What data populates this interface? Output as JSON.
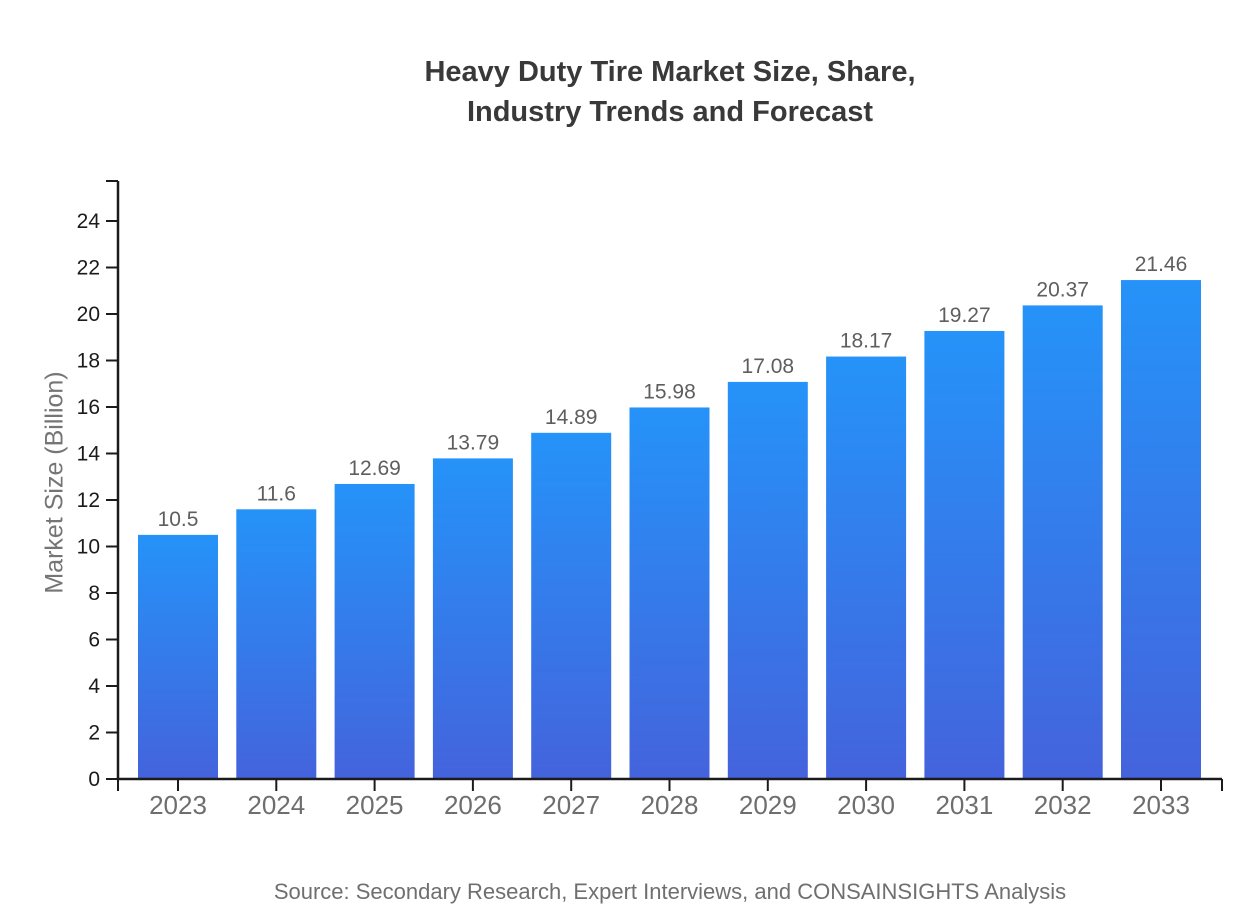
{
  "header": {
    "title_lines": [
      "Heavy Duty Tire Market Size, Share,",
      "Industry Trends and Forecast"
    ]
  },
  "footer": {
    "source": "Source: Secondary Research, Expert Interviews, and CONSAINSIGHTS Analysis"
  },
  "chart_data": {
    "type": "bar",
    "title": "Heavy Duty Tire Market Size, Share, Industry Trends and Forecast",
    "categories": [
      "2023",
      "2024",
      "2025",
      "2026",
      "2027",
      "2028",
      "2029",
      "2030",
      "2031",
      "2032",
      "2033"
    ],
    "values": [
      10.5,
      11.6,
      12.69,
      13.79,
      14.89,
      15.98,
      17.08,
      18.17,
      19.27,
      20.37,
      21.46
    ],
    "xlabel": "",
    "ylabel": "Market Size (Billion)",
    "y_ticks": [
      0,
      2,
      4,
      6,
      8,
      10,
      12,
      14,
      16,
      18,
      20,
      22,
      24
    ],
    "ylim": [
      0,
      25.7
    ],
    "grid": false,
    "legend_position": "none",
    "colors": {
      "bar_top": "#2593f9",
      "bar_bottom": "#4463dc",
      "axis": "#1b1b1b",
      "y_tick_label": "#1b1b1b",
      "year_label": "#6e6e6e",
      "value_label": "#5e5e5e",
      "title": "#393939",
      "muted_text": "#6f6f6f"
    }
  }
}
